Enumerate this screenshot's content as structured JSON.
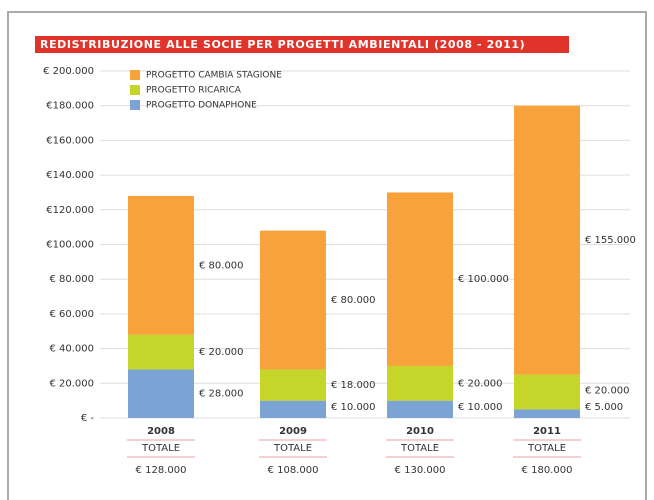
{
  "chart_data": {
    "type": "stacked_bar",
    "title": "REDISTRIBUZIONE ALLE SOCIE PER PROGETTI AMBIENTALI (2008 - 2011)",
    "categories": [
      "2008",
      "2009",
      "2010",
      "2011"
    ],
    "series": [
      {
        "name": "PROGETTO DONAPHONE",
        "color": "#7ba3d4",
        "values": [
          28000,
          10000,
          10000,
          5000
        ],
        "value_labels": [
          "€ 28.000",
          "€ 10.000",
          "€ 10.000",
          "€ 5.000"
        ]
      },
      {
        "name": "PROGETTO RICARICA",
        "color": "#c5d52a",
        "values": [
          20000,
          18000,
          20000,
          20000
        ],
        "value_labels": [
          "€ 20.000",
          "€ 18.000",
          "€ 20.000",
          "€ 20.000"
        ]
      },
      {
        "name": "PROGETTO CAMBIA STAGIONE",
        "color": "#f7a23b",
        "values": [
          80000,
          80000,
          100000,
          155000
        ],
        "value_labels": [
          "€ 80.000",
          "€ 80.000",
          "€ 100.000",
          "€ 155.000"
        ]
      }
    ],
    "totals": {
      "label": "TOTALE",
      "values": [
        128000,
        108000,
        130000,
        180000
      ],
      "value_labels": [
        "€ 128.000",
        "€ 108.000",
        "€ 130.000",
        "€ 180.000"
      ]
    },
    "ylim": [
      0,
      200000
    ],
    "yticks": [
      {
        "value": 0,
        "label": "€ -"
      },
      {
        "value": 20000,
        "label": "€ 20.000"
      },
      {
        "value": 40000,
        "label": "€ 40.000"
      },
      {
        "value": 60000,
        "label": "€ 60.000"
      },
      {
        "value": 80000,
        "label": "€ 80.000"
      },
      {
        "value": 100000,
        "label": "€100.000"
      },
      {
        "value": 120000,
        "label": "€120.000"
      },
      {
        "value": 140000,
        "label": "€140.000"
      },
      {
        "value": 160000,
        "label": "€160.000"
      },
      {
        "value": 180000,
        "label": "€180.000"
      },
      {
        "value": 200000,
        "label": "€ 200.000"
      }
    ],
    "grid": true
  }
}
